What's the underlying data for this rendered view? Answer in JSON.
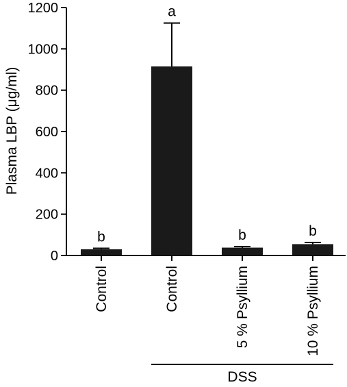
{
  "chart_data": {
    "type": "bar",
    "ylabel": "Plasma LBP (μg/ml)",
    "ylim": [
      0,
      1200
    ],
    "yticks": [
      0,
      200,
      400,
      600,
      800,
      1000,
      1200
    ],
    "categories": [
      "Control",
      "Control",
      "5 % Psyllium",
      "10 % Psyllium"
    ],
    "values": [
      30,
      915,
      38,
      55
    ],
    "errors": [
      5,
      210,
      5,
      8
    ],
    "significance_letters": [
      "b",
      "a",
      "b",
      "b"
    ],
    "group_bracket": {
      "label": "DSS",
      "spans_categories": [
        1,
        3
      ]
    },
    "bar_color": "#1a1a1a"
  }
}
